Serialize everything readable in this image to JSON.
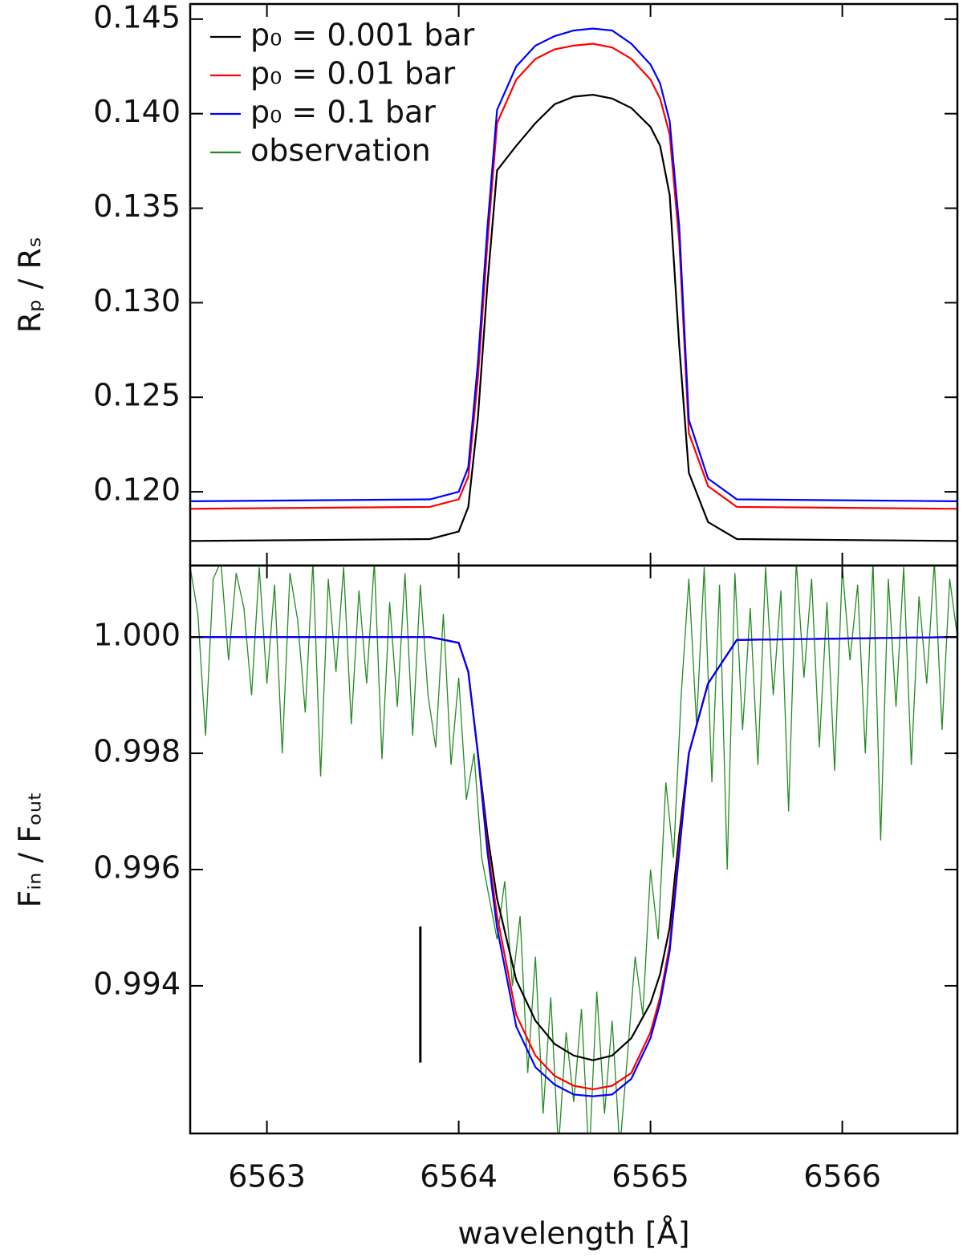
{
  "chart_data": [
    {
      "type": "line",
      "ylabel": "Rₚ / Rₛ",
      "x": [
        6562.6,
        6563.85,
        6564.0,
        6564.05,
        6564.1,
        6564.15,
        6564.2,
        6564.3,
        6564.4,
        6564.5,
        6564.6,
        6564.7,
        6564.8,
        6564.9,
        6565.0,
        6565.05,
        6565.1,
        6565.15,
        6565.2,
        6565.3,
        6565.45,
        6566.6
      ],
      "xlim": [
        6562.6,
        6566.6
      ],
      "xticks": [
        6563,
        6564,
        6565,
        6566
      ],
      "ylim": [
        0.1161,
        0.1458
      ],
      "yticks": [
        {
          "value": 0.12,
          "label": "0.120"
        },
        0.125,
        {
          "value": 0.13,
          "label": "0.130"
        },
        0.135,
        {
          "value": 0.14,
          "label": "0.140"
        },
        0.145
      ],
      "legend": "upper left",
      "series": [
        {
          "name": "p₀ = 0.001 bar",
          "color": "#000000",
          "values": [
            0.1174,
            0.1175,
            0.1179,
            0.1192,
            0.1239,
            0.131,
            0.137,
            0.1383,
            0.1395,
            0.1405,
            0.1409,
            0.141,
            0.1408,
            0.1403,
            0.1393,
            0.1383,
            0.1357,
            0.1277,
            0.121,
            0.1184,
            0.1175,
            0.1174
          ]
        },
        {
          "name": "p₀ = 0.01 bar",
          "color": "#ff0000",
          "values": [
            0.1191,
            0.1192,
            0.1196,
            0.1208,
            0.126,
            0.1332,
            0.1395,
            0.1418,
            0.1429,
            0.1434,
            0.1436,
            0.1437,
            0.1435,
            0.1429,
            0.1418,
            0.1408,
            0.1389,
            0.1332,
            0.1231,
            0.1203,
            0.1192,
            0.1191
          ]
        },
        {
          "name": "p₀ = 0.1 bar",
          "color": "#0000ff",
          "values": [
            0.1195,
            0.1196,
            0.12,
            0.1213,
            0.1268,
            0.134,
            0.1402,
            0.1425,
            0.1436,
            0.1441,
            0.1444,
            0.1445,
            0.1444,
            0.1437,
            0.1426,
            0.1416,
            0.1396,
            0.134,
            0.1238,
            0.1207,
            0.1196,
            0.1195
          ]
        }
      ]
    },
    {
      "type": "line",
      "ylabel": "Fᵢₙ / Fₒᵤₜ",
      "xlabel": "wavelength [Å]",
      "x": [
        6562.6,
        6563.85,
        6564.0,
        6564.05,
        6564.1,
        6564.15,
        6564.2,
        6564.3,
        6564.4,
        6564.5,
        6564.6,
        6564.7,
        6564.8,
        6564.9,
        6565.0,
        6565.05,
        6565.1,
        6565.15,
        6565.2,
        6565.3,
        6565.45,
        6566.6
      ],
      "xlim": [
        6562.6,
        6566.6
      ],
      "xticks": [
        6563,
        6564,
        6565,
        6566
      ],
      "ylim": [
        0.99146,
        1.00123
      ],
      "yticks": [
        0.994,
        0.996,
        0.998,
        {
          "value": 1.0,
          "label": "1.000"
        }
      ],
      "scale_bar": {
        "x": 6563.8,
        "y": [
          0.99268,
          0.99502
        ]
      },
      "series": [
        {
          "color": "#000000",
          "values": [
            1.0,
            1.0,
            0.9999,
            0.9994,
            0.998,
            0.9966,
            0.9955,
            0.9941,
            0.9934,
            0.993,
            0.9928,
            0.99272,
            0.9928,
            0.9931,
            0.9937,
            0.9942,
            0.995,
            0.9966,
            0.998,
            0.9992,
            0.99995,
            1.0
          ]
        },
        {
          "color": "#ff0000",
          "values": [
            1.0,
            1.0,
            0.9999,
            0.9994,
            0.998,
            0.9964,
            0.9952,
            0.9935,
            0.9928,
            0.99245,
            0.99228,
            0.99222,
            0.99228,
            0.9925,
            0.9932,
            0.9938,
            0.9947,
            0.9964,
            0.998,
            0.9992,
            0.99995,
            1.0
          ]
        },
        {
          "color": "#0000ff",
          "values": [
            1.0,
            1.0,
            0.9999,
            0.9994,
            0.998,
            0.9963,
            0.995,
            0.9933,
            0.9926,
            0.9923,
            0.99213,
            0.9921,
            0.99213,
            0.9924,
            0.9931,
            0.9937,
            0.9946,
            0.9963,
            0.998,
            0.9992,
            0.99995,
            1.0
          ]
        },
        {
          "name": "observation",
          "color": "#228b22",
          "x": [
            6562.6,
            6562.64,
            6562.68,
            6562.72,
            6562.76,
            6562.8,
            6562.84,
            6562.88,
            6562.92,
            6562.96,
            6563.0,
            6563.04,
            6563.08,
            6563.12,
            6563.16,
            6563.2,
            6563.24,
            6563.28,
            6563.32,
            6563.36,
            6563.4,
            6563.44,
            6563.48,
            6563.52,
            6563.56,
            6563.6,
            6563.64,
            6563.68,
            6563.72,
            6563.76,
            6563.8,
            6563.84,
            6563.88,
            6563.92,
            6563.96,
            6564.0,
            6564.04,
            6564.08,
            6564.12,
            6564.16,
            6564.2,
            6564.24,
            6564.28,
            6564.32,
            6564.36,
            6564.4,
            6564.44,
            6564.48,
            6564.52,
            6564.56,
            6564.6,
            6564.64,
            6564.68,
            6564.72,
            6564.76,
            6564.8,
            6564.84,
            6564.88,
            6564.92,
            6564.96,
            6565.0,
            6565.04,
            6565.08,
            6565.12,
            6565.16,
            6565.2,
            6565.24,
            6565.28,
            6565.32,
            6565.36,
            6565.4,
            6565.44,
            6565.48,
            6565.52,
            6565.56,
            6565.6,
            6565.64,
            6565.68,
            6565.72,
            6565.76,
            6565.8,
            6565.84,
            6565.88,
            6565.92,
            6565.96,
            6566.0,
            6566.04,
            6566.08,
            6566.12,
            6566.16,
            6566.2,
            6566.24,
            6566.28,
            6566.32,
            6566.36,
            6566.4,
            6566.44,
            6566.48,
            6566.52,
            6566.56,
            6566.6
          ],
          "values": [
            1.0012,
            1.0004,
            0.9983,
            1.001,
            1.0013,
            0.9996,
            1.0011,
            1.0005,
            0.999,
            1.0012,
            0.9992,
            1.0009,
            0.998,
            1.0011,
            1.0003,
            0.9987,
            1.0013,
            0.9976,
            1.001,
            0.9994,
            1.0012,
            0.9985,
            1.0008,
            0.9992,
            1.0013,
            0.9979,
            1.0006,
            0.9988,
            1.0011,
            0.9983,
            1.0009,
            0.999,
            0.9981,
            1.0004,
            0.9978,
            0.9993,
            0.9972,
            0.998,
            0.9962,
            0.9955,
            0.9948,
            0.9958,
            0.994,
            0.9952,
            0.9925,
            0.9945,
            0.9918,
            0.9938,
            0.9912,
            0.9932,
            0.992,
            0.9936,
            0.991,
            0.9939,
            0.9918,
            0.9934,
            0.9912,
            0.9928,
            0.9945,
            0.9935,
            0.996,
            0.9948,
            0.9975,
            0.9962,
            0.999,
            1.001,
            0.9985,
            1.0012,
            0.9975,
            1.0009,
            0.996,
            1.0011,
            0.9984,
            1.0005,
            0.9978,
            1.0012,
            0.999,
            1.0008,
            0.997,
            1.0013,
            0.9993,
            1.001,
            0.9981,
            1.0006,
            0.9977,
            1.0012,
            0.9996,
            1.0009,
            0.998,
            1.0013,
            0.9965,
            1.001,
            0.9988,
            1.0012,
            0.9978,
            1.0007,
            0.9992,
            1.0013,
            0.9984,
            1.001,
            1.0
          ]
        }
      ]
    }
  ]
}
